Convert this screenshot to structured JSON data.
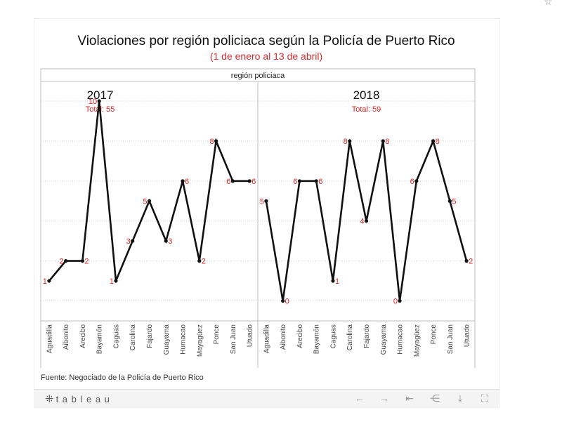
{
  "title": "Violaciones por región policiaca según la Policía de Puerto Rico",
  "subtitle": "(1 de enero al 13 de abril)",
  "source": "Fuente: Negociado de la Policía de Puerto Rico",
  "toolbar": {
    "brand": "t a b l e a u",
    "icons": [
      "undo-icon",
      "redo-icon",
      "revert-icon",
      "share-icon",
      "download-icon",
      "fullscreen-icon"
    ]
  },
  "colors": {
    "line": "#111111",
    "label": "#d42525",
    "grid": "#cfcfcf",
    "border": "#bdbdbd"
  },
  "chart_data": {
    "type": "line",
    "column_header": "región policiaca",
    "categories": [
      "Aguadilla",
      "Aibonito",
      "Arecibo",
      "Bayamón",
      "Caguas",
      "Carolina",
      "Fajardo",
      "Guayama",
      "Humacao",
      "Mayagüez",
      "Ponce",
      "San Juan",
      "Utuado"
    ],
    "ylim": [
      -0.5,
      11
    ],
    "grid": true,
    "panels": [
      {
        "year": "2017",
        "total": "Total: 55",
        "values": [
          1,
          2,
          2,
          10,
          1,
          3,
          5,
          3,
          6,
          2,
          8,
          6,
          6
        ],
        "label_side": [
          "left",
          "left",
          "right",
          "left",
          "left",
          "left",
          "left",
          "right",
          "right",
          "right",
          "left",
          "left",
          "right"
        ]
      },
      {
        "year": "2018",
        "total": "Total: 59",
        "values": [
          5,
          0,
          6,
          6,
          1,
          8,
          4,
          8,
          0,
          6,
          8,
          5,
          2
        ],
        "label_side": [
          "left",
          "right",
          "left",
          "right",
          "right",
          "left",
          "left",
          "right",
          "left",
          "left",
          "right",
          "right",
          "right"
        ]
      }
    ]
  }
}
